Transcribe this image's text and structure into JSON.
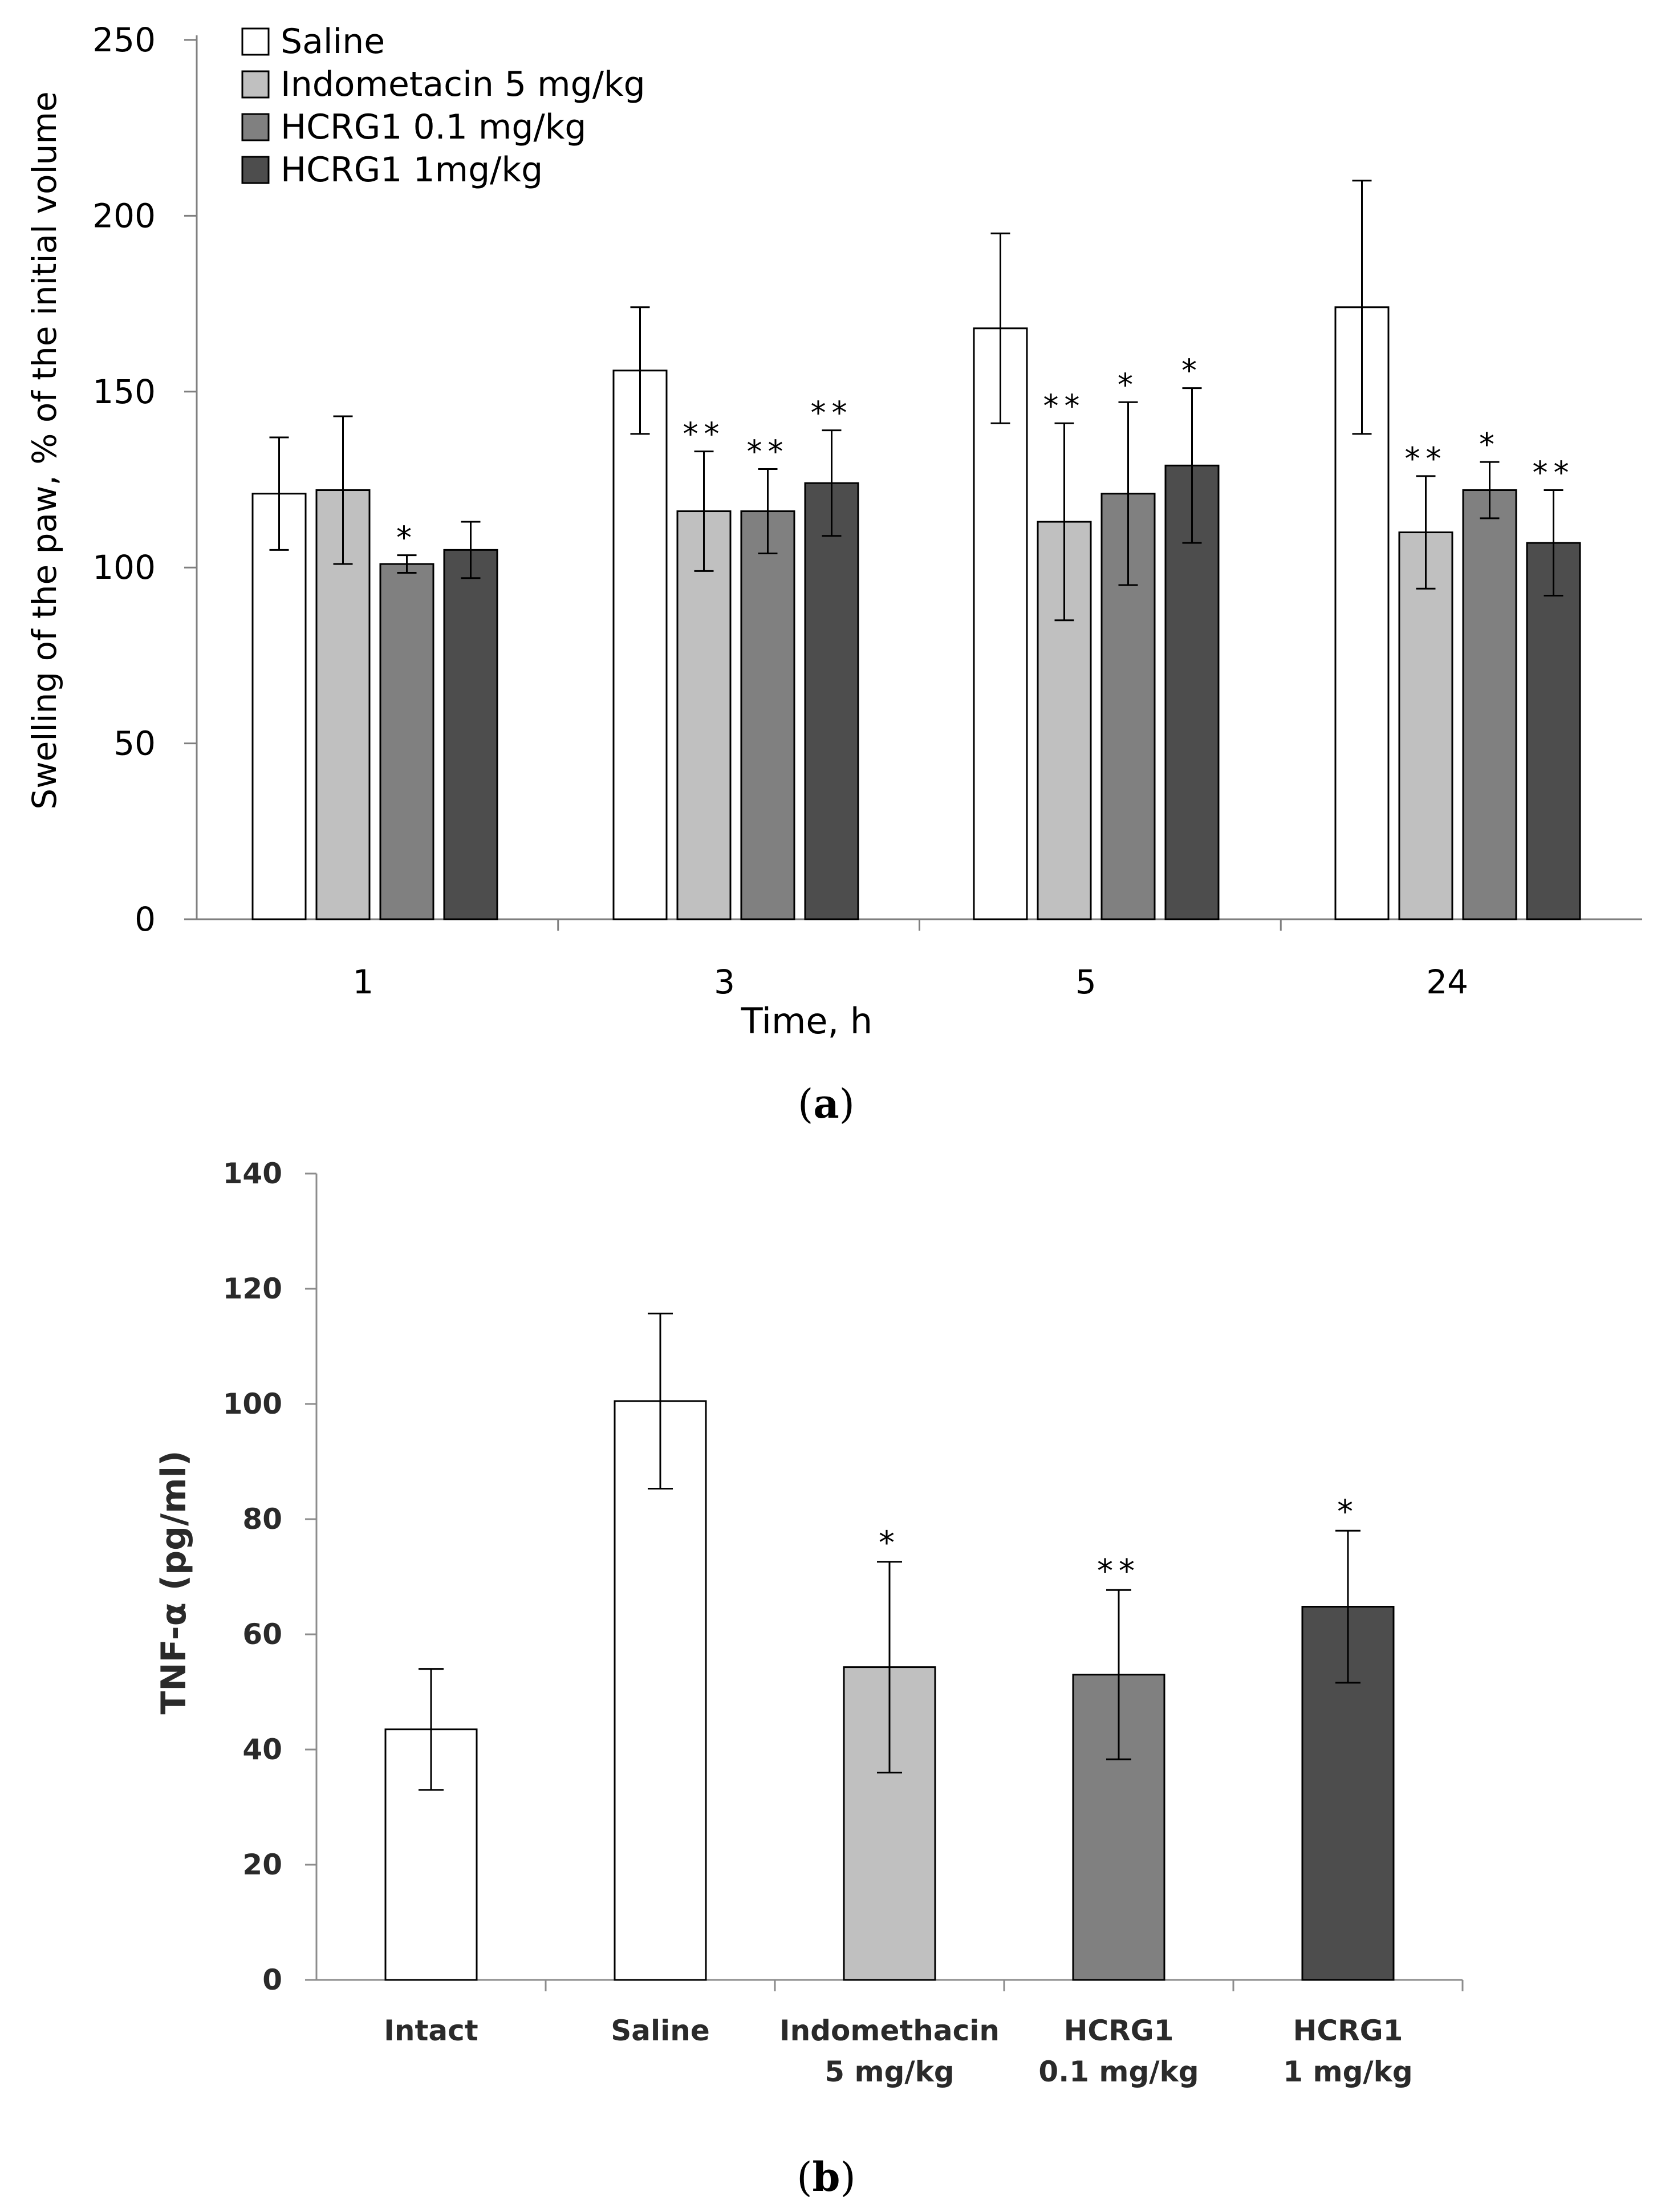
{
  "chart_data": [
    {
      "type": "bar",
      "panel_label": "a",
      "xlabel": "Time, h",
      "ylabel": "Swelling of the paw, % of the initial volume",
      "ylim": [
        0,
        250
      ],
      "yticks": [
        0,
        50,
        100,
        150,
        200,
        250
      ],
      "categories": [
        "1",
        "3",
        "5",
        "24"
      ],
      "legend_position": "top-left",
      "series": [
        {
          "name": "Saline",
          "color": "#ffffff",
          "values": [
            121,
            156,
            168,
            174
          ],
          "errors": [
            16,
            18,
            27,
            36
          ],
          "significance": [
            "",
            "",
            "",
            ""
          ]
        },
        {
          "name": "Indometacin 5 mg/kg",
          "color": "#c0c0c0",
          "values": [
            122,
            116,
            113,
            110
          ],
          "errors": [
            21,
            17,
            28,
            16
          ],
          "significance": [
            "",
            "**",
            "**",
            "**"
          ]
        },
        {
          "name": "HCRG1 0.1 mg/kg",
          "color": "#808080",
          "values": [
            101,
            116,
            121,
            122
          ],
          "errors": [
            2.5,
            12,
            26,
            8
          ],
          "significance": [
            "*",
            "**",
            "*",
            "*"
          ]
        },
        {
          "name": "HCRG1 1mg/kg",
          "color": "#4d4d4d",
          "values": [
            105,
            124,
            129,
            107
          ],
          "errors": [
            8,
            15,
            22,
            15
          ],
          "significance": [
            "",
            "**",
            "*",
            "**"
          ]
        }
      ]
    },
    {
      "type": "bar",
      "panel_label": "b",
      "xlabel": "",
      "ylabel": "TNF-α (pg/ml)",
      "ylim": [
        0,
        140
      ],
      "yticks": [
        0,
        20,
        40,
        60,
        80,
        100,
        120,
        140
      ],
      "categories": [
        {
          "line1": "Intact",
          "line2": ""
        },
        {
          "line1": "Saline",
          "line2": ""
        },
        {
          "line1": "Indomethacin",
          "line2": "5 mg/kg"
        },
        {
          "line1": "HCRG1",
          "line2": "0.1 mg/kg"
        },
        {
          "line1": "HCRG1",
          "line2": "1 mg/kg"
        }
      ],
      "values": [
        43.5,
        100.5,
        54.3,
        53,
        64.8
      ],
      "errors": [
        10.5,
        15.2,
        18.3,
        14.7,
        13.2
      ],
      "colors": [
        "#ffffff",
        "#ffffff",
        "#c0c0c0",
        "#808080",
        "#4d4d4d"
      ],
      "significance": [
        "",
        "",
        "*",
        "**",
        "*"
      ]
    }
  ]
}
